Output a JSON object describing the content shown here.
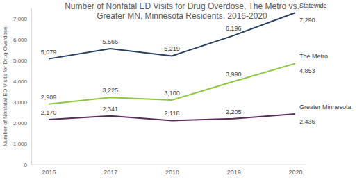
{
  "chart_data": {
    "type": "line",
    "title": "Number of Nonfatal ED Visits for Drug Overdose, The Metro vs. Greater MN, Minnesota Residents, 2016-2020",
    "y_label": "Number of Nonfatal ED Visits for Drug Overdose",
    "categories": [
      "2016",
      "2017",
      "2018",
      "2019",
      "2020"
    ],
    "series": [
      {
        "name": "Statewide",
        "color": "#243f60",
        "values": [
          5079,
          5566,
          5219,
          6196,
          7290
        ],
        "value_labels": [
          "5,079",
          "5,566",
          "5,219",
          "6,196",
          "7,290"
        ]
      },
      {
        "name": "The Metro",
        "color": "#8cc63e",
        "values": [
          2909,
          3225,
          3100,
          3990,
          4853
        ],
        "value_labels": [
          "2,909",
          "3,225",
          "3,100",
          "3,990",
          "4,853"
        ]
      },
      {
        "name": "Greater Minnesota",
        "color": "#5a2a5c",
        "values": [
          2170,
          2341,
          2118,
          2205,
          2436
        ],
        "value_labels": [
          "2,170",
          "2,341",
          "2,118",
          "2,205",
          "2,436"
        ]
      }
    ],
    "ylim": [
      0,
      7500
    ],
    "yticks": [
      0,
      {
        "value": 1000,
        "label": "1,000"
      },
      {
        "value": 2000,
        "label": "2,000"
      },
      {
        "value": 3000,
        "label": "3,000"
      },
      {
        "value": 4000,
        "label": "4,000"
      },
      {
        "value": 5000,
        "label": "5,000"
      },
      {
        "value": 6000,
        "label": "6,000"
      },
      {
        "value": 7000,
        "label": "7,000"
      }
    ],
    "grid": false,
    "data_labels": true,
    "marker": "none"
  }
}
